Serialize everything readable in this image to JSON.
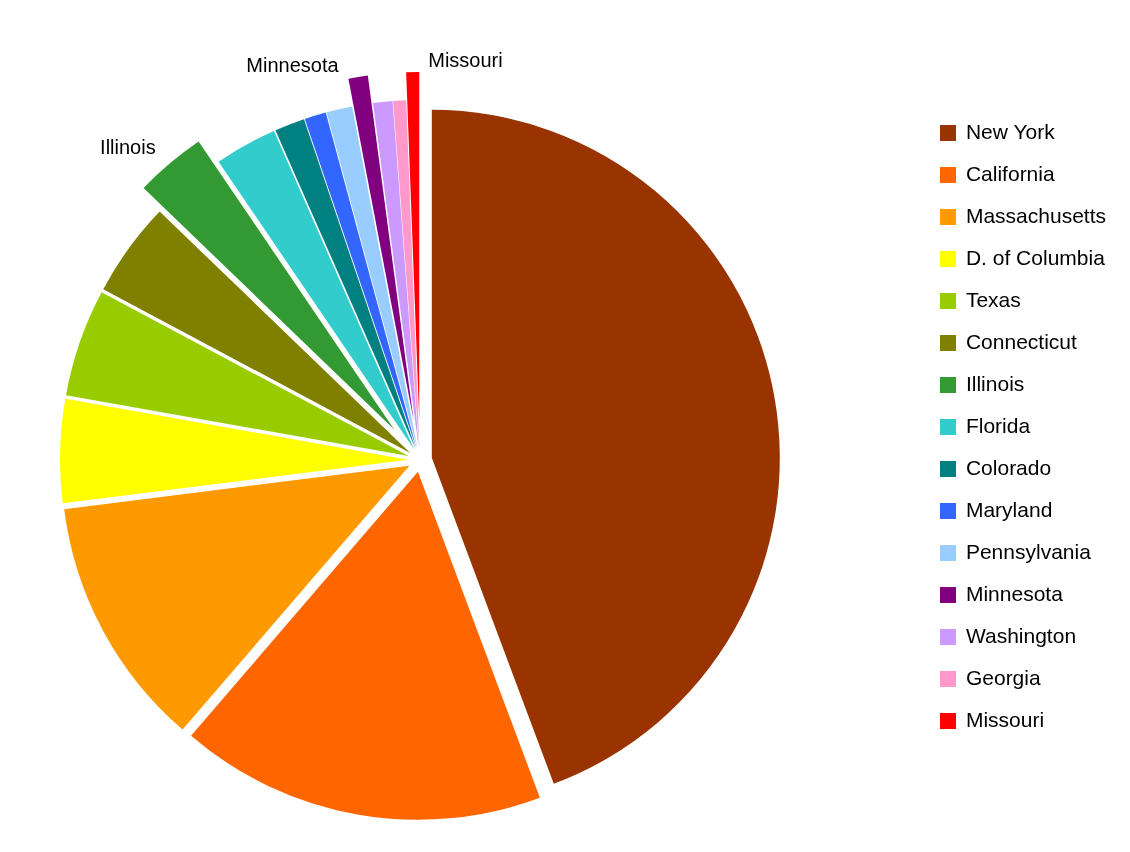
{
  "chart_data": {
    "type": "pie",
    "categories": [
      "New York",
      "California",
      "Massachusetts",
      "D. of Columbia",
      "Texas",
      "Connecticut",
      "Illinois",
      "Florida",
      "Colorado",
      "Maryland",
      "Pennsylvania",
      "Minnesota",
      "Washington",
      "Georgia",
      "Missouri"
    ],
    "values": [
      44.3,
      17,
      11.7,
      4.8,
      5,
      4.4,
      3.3,
      2.9,
      1.4,
      1,
      1.2,
      0.9,
      0.9,
      0.6,
      0.6
    ],
    "colors": [
      "#993300",
      "#ff6600",
      "#ff9900",
      "#ffff00",
      "#99cc00",
      "#808000",
      "#339933",
      "#33cccc",
      "#008080",
      "#3366ff",
      "#99ccff",
      "#800080",
      "#cc99ff",
      "#ff99cc",
      "#ff0000"
    ],
    "value_labels": [
      null,
      null,
      null,
      null,
      null,
      null,
      "Illinois",
      null,
      null,
      null,
      null,
      "Minnesota",
      null,
      null,
      "Missouri"
    ],
    "legend": "right"
  }
}
